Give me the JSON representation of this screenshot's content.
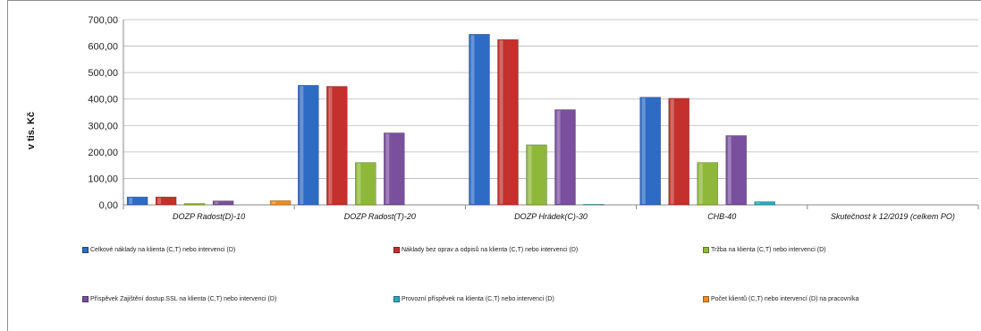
{
  "chart_data": {
    "type": "bar",
    "ylabel": "v tis. Kč",
    "ylim": [
      0,
      700
    ],
    "y_ticks": [
      "0,00",
      "100,00",
      "200,00",
      "300,00",
      "400,00",
      "500,00",
      "600,00",
      "700,00"
    ],
    "grid": true,
    "legend_position": "bottom",
    "categories": [
      "DOZP Radost(D)-10",
      "DOZP Radost(T)-20",
      "DOZP Hrádek(C)-30",
      "CHB-40",
      "Skutečnost k 12/2019 (celkem PO)"
    ],
    "series": [
      {
        "name": "Celkové náklady na klienta (C,T) nebo intervenci (D)",
        "color": "#2e6bc4",
        "values": [
          30,
          452,
          645,
          407,
          null
        ]
      },
      {
        "name": "Náklady bez oprav a odpisů na klienta (C,T) nebo intervenci (D)",
        "color": "#c4302b",
        "values": [
          30,
          448,
          625,
          403,
          null
        ]
      },
      {
        "name": "Tržba na klienta (C,T) nebo intervenci (D)",
        "color": "#8fb83a",
        "values": [
          5,
          160,
          227,
          160,
          null
        ]
      },
      {
        "name": "Příspěvek Zajištění dostup.SSL na klienta (C,T) nebo intervenci (D)",
        "color": "#7a4f9e",
        "values": [
          15,
          272,
          360,
          262,
          null
        ]
      },
      {
        "name": "Provozní příspěvek na klienta (C,T) nebo intervenci (D)",
        "color": "#2fa7c0",
        "values": [
          0,
          0,
          2,
          12,
          null
        ]
      },
      {
        "name": "Počet klientů (C,T) nebo intervencí (D) na pracovníka",
        "color": "#f08c24",
        "values": [
          16,
          0,
          0,
          0,
          null
        ]
      }
    ]
  }
}
